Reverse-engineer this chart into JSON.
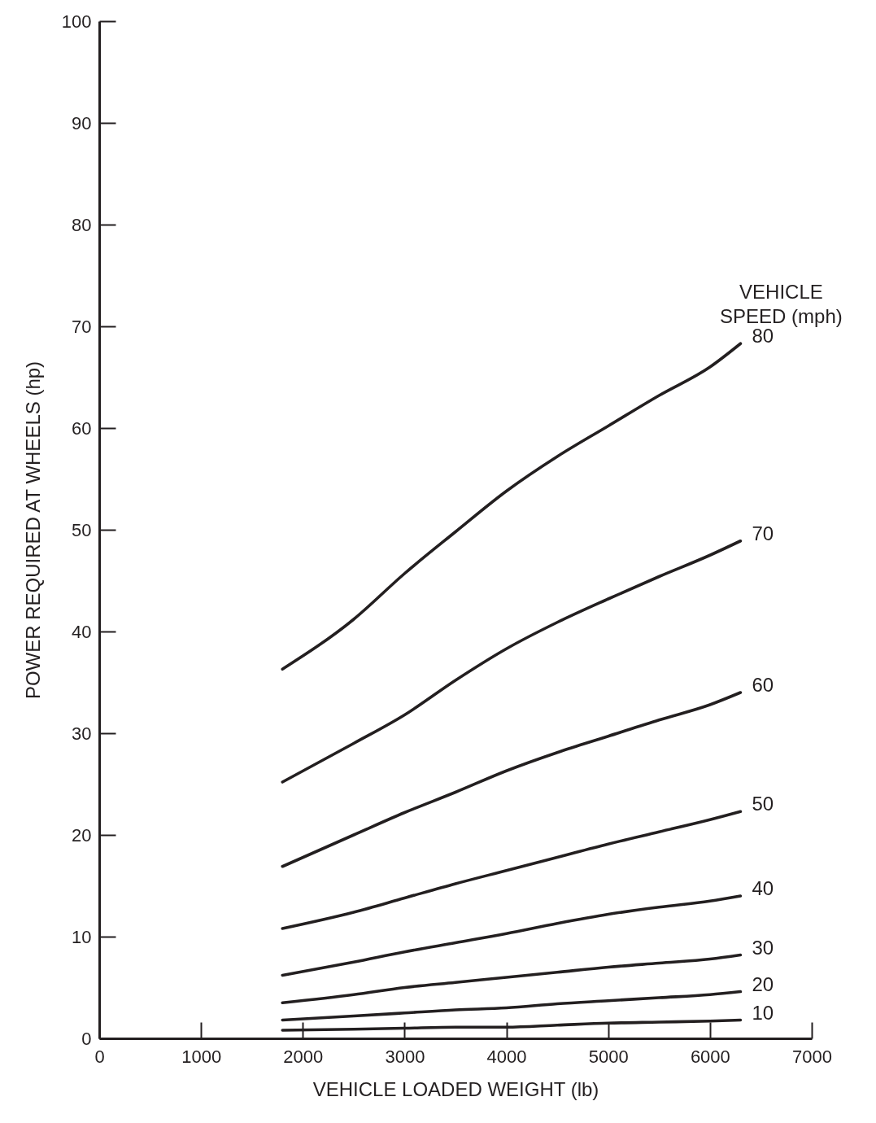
{
  "chart_data": {
    "type": "line",
    "xlabel": "VEHICLE LOADED WEIGHT (lb)",
    "ylabel": "POWER REQUIRED AT WHEELS (hp)",
    "legend_title": "VEHICLE SPEED (mph)",
    "x": [
      1800,
      2500,
      3000,
      3500,
      4000,
      4500,
      5000,
      5500,
      6000,
      6300
    ],
    "xlim": [
      0,
      7000
    ],
    "xticks": [
      0,
      1000,
      2000,
      3000,
      4000,
      5000,
      6000,
      7000
    ],
    "ylim": [
      0,
      100
    ],
    "yticks": [
      0,
      10,
      20,
      30,
      40,
      50,
      60,
      70,
      80,
      90,
      100
    ],
    "grid": false,
    "legend": false,
    "marker": "none",
    "line_style": "solid",
    "series": [
      {
        "name": "80",
        "color": "#231f20",
        "values": [
          36.3,
          41.2,
          45.7,
          49.8,
          53.8,
          57.2,
          60.2,
          63.2,
          66.0,
          68.3
        ]
      },
      {
        "name": "70",
        "color": "#231f20",
        "values": [
          25.2,
          29.0,
          31.8,
          35.2,
          38.3,
          40.9,
          43.2,
          45.4,
          47.5,
          48.9
        ]
      },
      {
        "name": "60",
        "color": "#231f20",
        "values": [
          16.9,
          20.0,
          22.2,
          24.2,
          26.3,
          28.1,
          29.7,
          31.3,
          32.8,
          34.0
        ]
      },
      {
        "name": "50",
        "color": "#231f20",
        "values": [
          10.8,
          12.4,
          13.8,
          15.2,
          16.5,
          17.8,
          19.1,
          20.3,
          21.5,
          22.3
        ]
      },
      {
        "name": "40",
        "color": "#231f20",
        "values": [
          6.2,
          7.5,
          8.5,
          9.4,
          10.3,
          11.3,
          12.2,
          12.9,
          13.5,
          14.0
        ]
      },
      {
        "name": "30",
        "color": "#231f20",
        "values": [
          3.5,
          4.3,
          5.0,
          5.5,
          6.0,
          6.5,
          7.0,
          7.4,
          7.8,
          8.2
        ]
      },
      {
        "name": "20",
        "color": "#231f20",
        "values": [
          1.8,
          2.2,
          2.5,
          2.8,
          3.0,
          3.4,
          3.7,
          4.0,
          4.3,
          4.6
        ]
      },
      {
        "name": "10",
        "color": "#231f20",
        "values": [
          0.8,
          0.9,
          1.0,
          1.1,
          1.1,
          1.3,
          1.5,
          1.6,
          1.7,
          1.8
        ]
      }
    ]
  }
}
